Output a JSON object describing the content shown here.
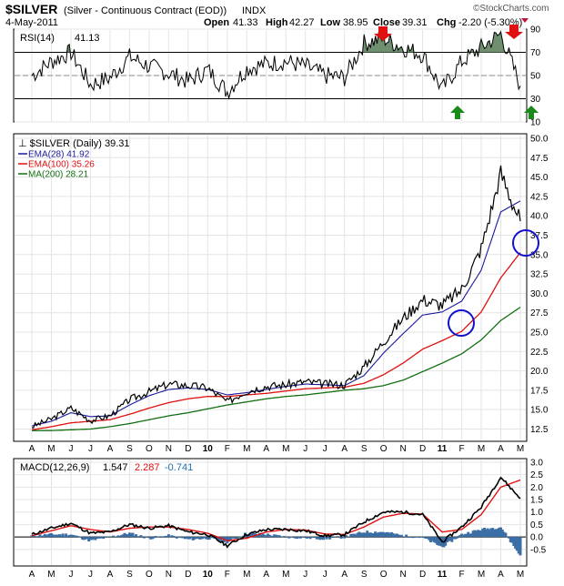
{
  "header": {
    "symbol": "$SILVER",
    "name": "(Silver - Continuous Contract (EOD))",
    "exchange": "INDX",
    "date": "4-May-2011",
    "brand": "©StockCharts.com",
    "quote": {
      "open_label": "Open",
      "open": "41.33",
      "high_label": "High",
      "high": "42.27",
      "low_label": "Low",
      "low": "38.95",
      "close_label": "Close",
      "close": "39.31",
      "chg_label": "Chg",
      "chg": "-2.20 (-5.30%)"
    }
  },
  "colors": {
    "price": "#000000",
    "ema28": "#1a1aa0",
    "ema100": "#e01010",
    "ma200": "#137013",
    "rsi_fill": "#6f8f6f",
    "macd_hist": "#3a6ea5",
    "signal": "#e01010",
    "arrow_down": "#e01010",
    "arrow_up": "#1a8a1a",
    "circle": "#1010d0",
    "panel_bg": "#ffffff",
    "grid": "#e4e4e4"
  },
  "rsi_panel": {
    "label": "RSI(14)",
    "value": "41.13",
    "ticks": [
      "90",
      "70",
      "50",
      "30",
      "10"
    ],
    "overbought": 70,
    "oversold": 30
  },
  "price_panel": {
    "legend": [
      {
        "label": "$SILVER (Daily) 39.31",
        "color": "#000000"
      },
      {
        "label": "EMA(28) 41.92",
        "color": "#1a1aa0"
      },
      {
        "label": "EMA(100) 35.26",
        "color": "#e01010"
      },
      {
        "label": "MA(200) 28.21",
        "color": "#137013"
      }
    ],
    "ticks": [
      "50.0",
      "47.5",
      "45.0",
      "42.5",
      "40.0",
      "37.5",
      "35.0",
      "32.5",
      "30.0",
      "27.5",
      "25.0",
      "22.5",
      "20.0",
      "17.5",
      "15.0",
      "12.5"
    ]
  },
  "macd_panel": {
    "label": "MACD(12,26,9)",
    "macd": "1.547",
    "signal": "2.287",
    "hist": "-0.741",
    "ticks": [
      "3.0",
      "2.5",
      "2.0",
      "1.5",
      "1.0",
      "0.5",
      "0.0",
      "-0.5"
    ]
  },
  "x_axis": {
    "labels": [
      "A",
      "M",
      "J",
      "J",
      "A",
      "S",
      "O",
      "N",
      "D",
      "10",
      "F",
      "M",
      "A",
      "M",
      "J",
      "J",
      "A",
      "S",
      "O",
      "N",
      "D",
      "11",
      "F",
      "M",
      "A",
      "M"
    ]
  },
  "chart_data": {
    "type": "line",
    "x": [
      "2009-04",
      "2009-05",
      "2009-06",
      "2009-07",
      "2009-08",
      "2009-09",
      "2009-10",
      "2009-11",
      "2009-12",
      "2010-01",
      "2010-02",
      "2010-03",
      "2010-04",
      "2010-05",
      "2010-06",
      "2010-07",
      "2010-08",
      "2010-09",
      "2010-10",
      "2010-11",
      "2010-12",
      "2011-01",
      "2011-02",
      "2011-03",
      "2011-04",
      "2011-05"
    ],
    "series": [
      {
        "name": "$SILVER",
        "values": [
          12.8,
          13.8,
          15.2,
          13.6,
          14.2,
          16.3,
          17.3,
          18.3,
          18.1,
          17.8,
          16.0,
          17.4,
          18.0,
          18.2,
          18.6,
          18.3,
          18.2,
          20.5,
          23.8,
          26.8,
          29.2,
          28.5,
          30.5,
          35.8,
          45.5,
          39.31
        ]
      },
      {
        "name": "EMA(28)",
        "values": [
          12.9,
          13.5,
          14.6,
          14.1,
          14.2,
          15.6,
          16.8,
          17.6,
          17.8,
          17.6,
          16.9,
          17.2,
          17.6,
          18.0,
          18.3,
          18.2,
          18.1,
          19.4,
          22.3,
          24.8,
          27.2,
          27.6,
          29.0,
          33.0,
          40.5,
          41.92
        ]
      },
      {
        "name": "EMA(100)",
        "values": [
          12.4,
          12.8,
          13.3,
          13.5,
          13.7,
          14.4,
          15.2,
          15.9,
          16.4,
          16.7,
          16.7,
          16.9,
          17.1,
          17.4,
          17.7,
          17.8,
          17.9,
          18.4,
          19.5,
          21.0,
          22.8,
          23.9,
          25.1,
          27.6,
          32.0,
          35.26
        ]
      },
      {
        "name": "MA(200)",
        "values": [
          12.3,
          12.3,
          12.4,
          12.5,
          12.8,
          13.2,
          13.7,
          14.2,
          14.6,
          15.1,
          15.6,
          16.0,
          16.4,
          16.7,
          16.9,
          17.2,
          17.5,
          17.7,
          18.1,
          18.8,
          19.9,
          21.0,
          22.2,
          24.0,
          26.5,
          28.21
        ]
      }
    ],
    "rsi": {
      "name": "RSI(14)",
      "values": [
        50,
        62,
        70,
        42,
        48,
        66,
        58,
        52,
        45,
        55,
        36,
        56,
        60,
        62,
        58,
        50,
        48,
        78,
        82,
        74,
        68,
        38,
        62,
        74,
        86,
        41.13
      ]
    },
    "macd": {
      "macd": [
        0.1,
        0.35,
        0.55,
        0.15,
        0.2,
        0.5,
        0.35,
        0.45,
        0.2,
        0.1,
        -0.35,
        0.1,
        0.3,
        0.3,
        0.25,
        0.05,
        0.1,
        0.6,
        1.0,
        1.0,
        0.9,
        -0.2,
        0.4,
        1.2,
        2.4,
        1.547
      ],
      "signal": [
        0.05,
        0.25,
        0.45,
        0.3,
        0.2,
        0.35,
        0.4,
        0.4,
        0.3,
        0.15,
        -0.15,
        -0.05,
        0.2,
        0.3,
        0.28,
        0.12,
        0.1,
        0.4,
        0.8,
        0.95,
        0.92,
        0.2,
        0.3,
        0.9,
        2.0,
        2.287
      ]
    },
    "price_ylim": [
      11.5,
      50.0
    ],
    "rsi_ylim": [
      10,
      90
    ],
    "macd_ylim": [
      -0.8,
      3.0
    ]
  }
}
